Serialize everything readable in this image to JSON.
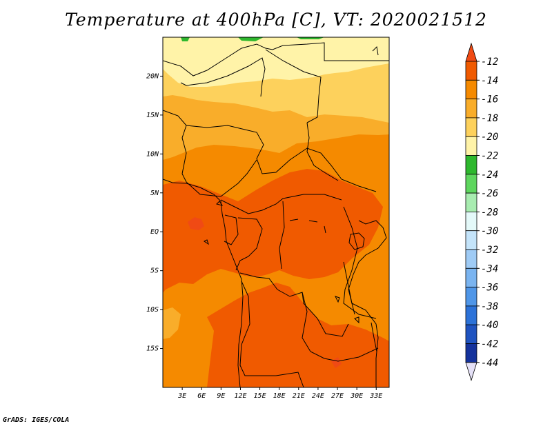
{
  "title": "Temperature at 400hPa [C], VT: 2020021512",
  "footer": "GrADS: IGES/COLA",
  "map": {
    "lon_range": [
      0,
      35
    ],
    "lat_range": [
      -20,
      25
    ],
    "lon_labels": [
      {
        "lon": 3,
        "label": "3E"
      },
      {
        "lon": 6,
        "label": "6E"
      },
      {
        "lon": 9,
        "label": "9E"
      },
      {
        "lon": 12,
        "label": "12E"
      },
      {
        "lon": 15,
        "label": "15E"
      },
      {
        "lon": 18,
        "label": "18E"
      },
      {
        "lon": 21,
        "label": "21E"
      },
      {
        "lon": 24,
        "label": "24E"
      },
      {
        "lon": 27,
        "label": "27E"
      },
      {
        "lon": 30,
        "label": "30E"
      },
      {
        "lon": 33,
        "label": "33E"
      }
    ],
    "lat_labels": [
      {
        "lat": 20,
        "label": "20N"
      },
      {
        "lat": 15,
        "label": "15N"
      },
      {
        "lat": 10,
        "label": "10N"
      },
      {
        "lat": 5,
        "label": "5N"
      },
      {
        "lat": 0,
        "label": "EQ"
      },
      {
        "lat": -5,
        "label": "5S"
      },
      {
        "lat": -10,
        "label": "10S"
      },
      {
        "lat": -15,
        "label": "15S"
      }
    ]
  },
  "colorbar": {
    "levels": [
      "-12",
      "-14",
      "-16",
      "-18",
      "-20",
      "-22",
      "-24",
      "-26",
      "-28",
      "-30",
      "-32",
      "-34",
      "-36",
      "-38",
      "-40",
      "-42",
      "-44"
    ],
    "colors": [
      "#f05a00",
      "#f58a00",
      "#f9ad2a",
      "#fdd15c",
      "#fff3a8",
      "#2eb82e",
      "#5ed65e",
      "#a8ecb0",
      "#e4f9f9",
      "#c4e4fa",
      "#9fcbf5",
      "#7ab4f0",
      "#4f96e8",
      "#2c72d8",
      "#1f53c0",
      "#14329c",
      "#0a0a70"
    ],
    "top_arrow_color": "#f04a14",
    "bottom_arrow_color": "#e4e0f6"
  }
}
